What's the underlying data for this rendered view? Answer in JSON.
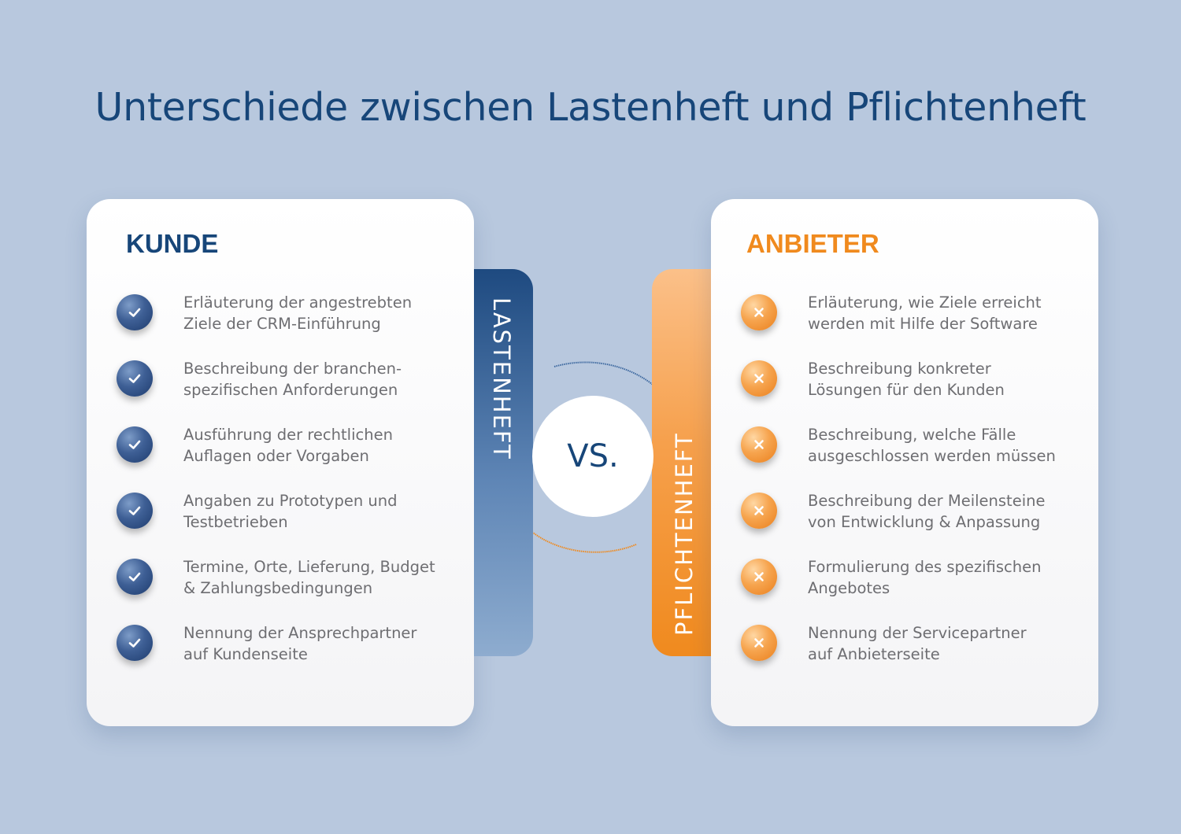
{
  "title": "Unterschiede zwischen Lastenheft und Pflichtenheft",
  "left": {
    "heading": "KUNDE",
    "tab_label": "LASTENHEFT",
    "bullet_icon": "check-icon",
    "accent": "#174679",
    "items": [
      {
        "line1": "Erläuterung der angestrebten",
        "line2": "Ziele der CRM-Einführung"
      },
      {
        "line1": "Beschreibung der branchen-",
        "line2": "spezifischen Anforderungen"
      },
      {
        "line1": "Ausführung der rechtlichen",
        "line2": "Auflagen oder Vorgaben"
      },
      {
        "line1": "Angaben zu Prototypen und",
        "line2": "Testbetrieben"
      },
      {
        "line1": "Termine, Orte, Lieferung, Budget",
        "line2": "& Zahlungsbedingungen"
      },
      {
        "line1": "Nennung der Ansprechpartner",
        "line2": "auf Kundenseite"
      }
    ]
  },
  "right": {
    "heading": "ANBIETER",
    "tab_label": "PFLICHTENHEFT",
    "bullet_icon": "cross-icon",
    "accent": "#f08a1e",
    "items": [
      {
        "line1": "Erläuterung, wie Ziele erreicht",
        "line2": "werden mit Hilfe der Software"
      },
      {
        "line1": "Beschreibung konkreter",
        "line2": "Lösungen für den Kunden"
      },
      {
        "line1": "Beschreibung, welche Fälle",
        "line2": "ausgeschlossen werden müssen"
      },
      {
        "line1": "Beschreibung der Meilensteine",
        "line2": "von Entwicklung & Anpassung"
      },
      {
        "line1": "Formulierung des spezifischen",
        "line2": "Angebotes"
      },
      {
        "line1": "Nennung der Servicepartner",
        "line2": "auf Anbieterseite"
      }
    ]
  },
  "vs_label": "VS."
}
